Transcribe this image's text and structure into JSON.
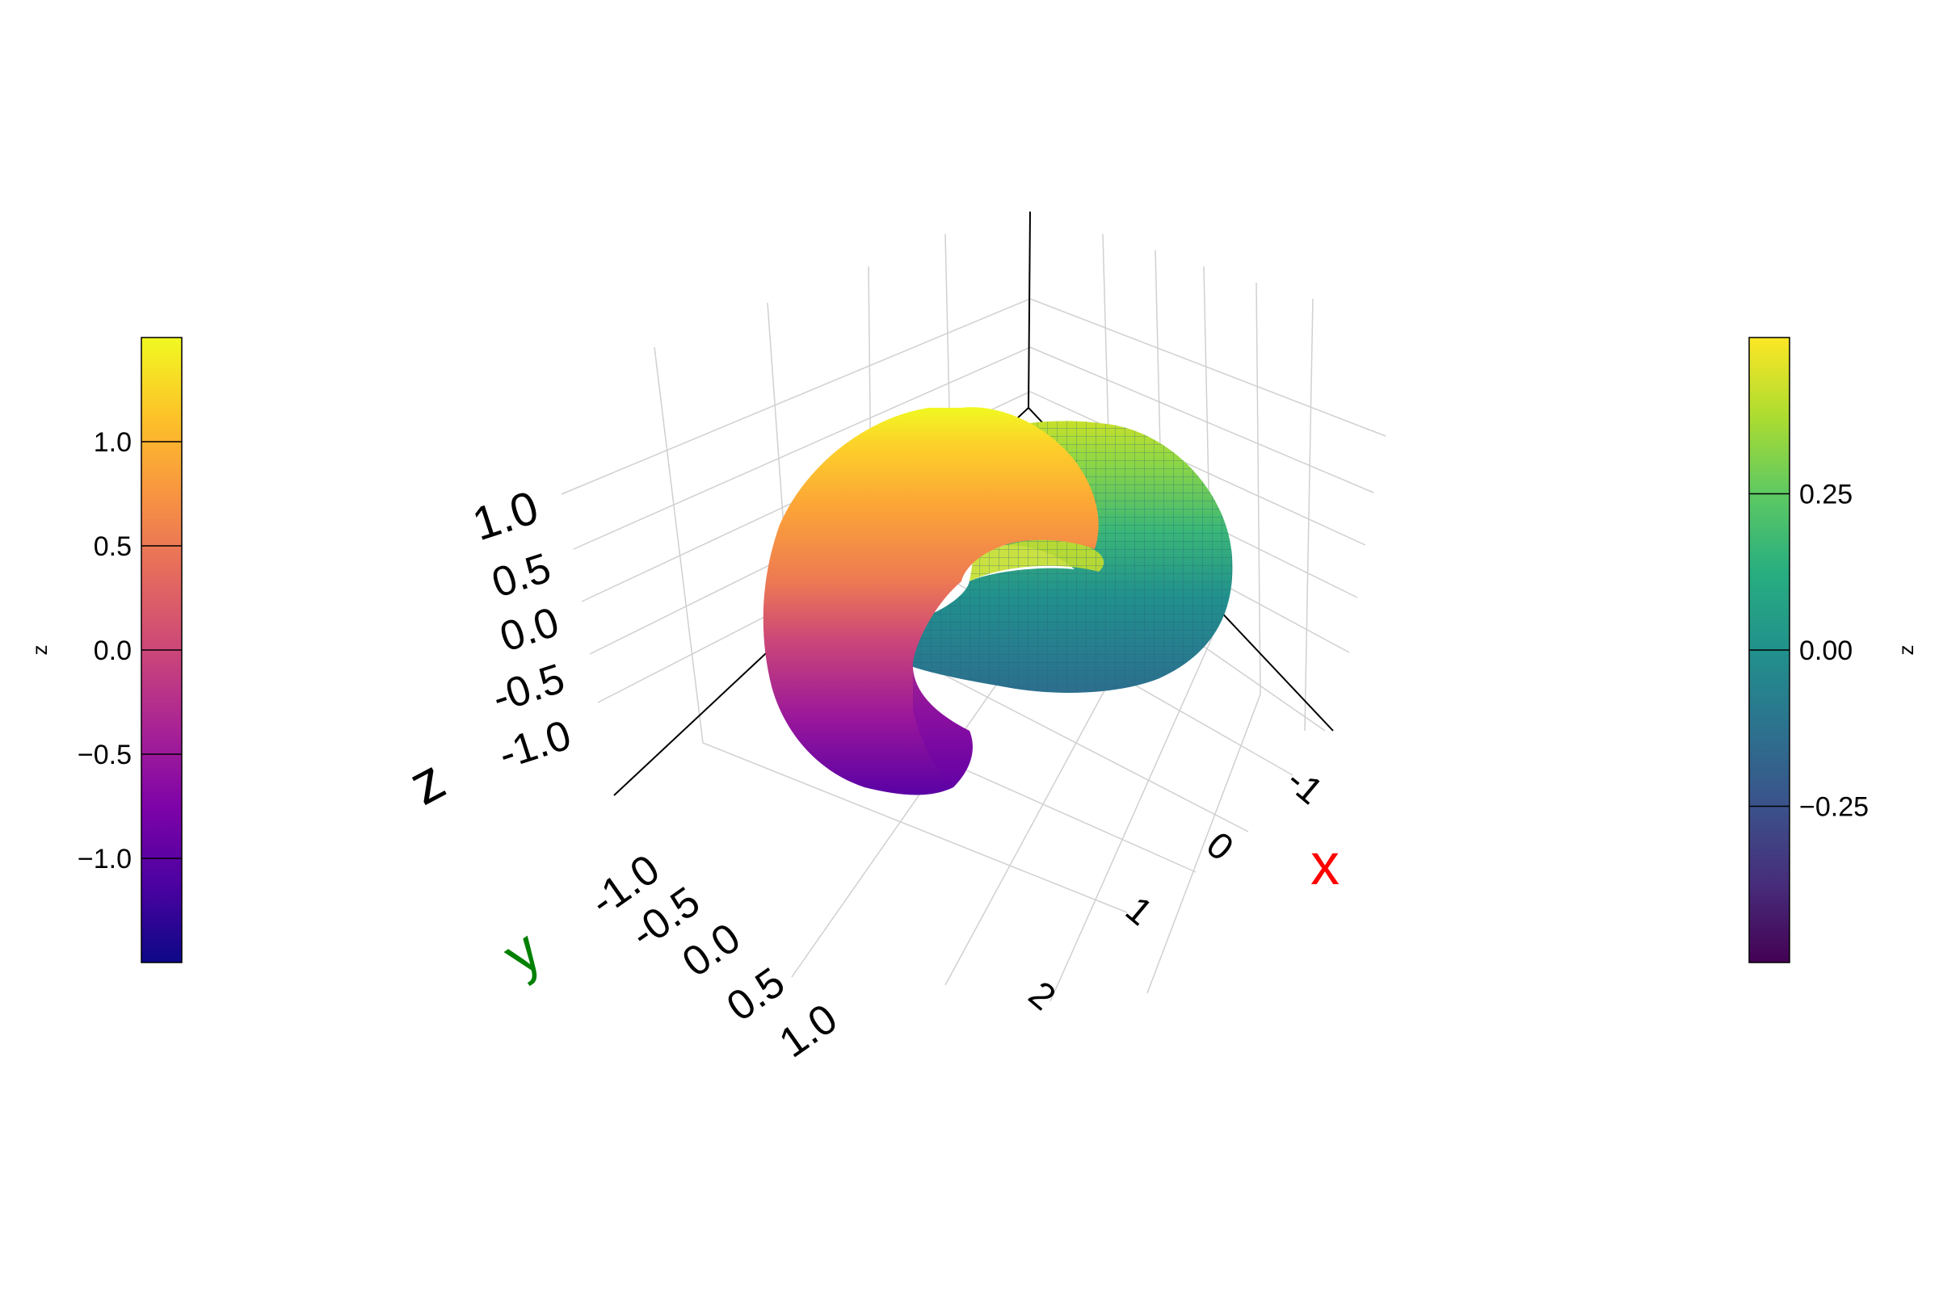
{
  "chart_data": {
    "type": "surface",
    "title": "",
    "axes": {
      "x": {
        "label": "x",
        "label_color": "#ff0000",
        "ticks": [
          "-1",
          "0",
          "1",
          "2"
        ],
        "range": [
          -1.5,
          2.5
        ]
      },
      "y": {
        "label": "y",
        "label_color": "#008000",
        "ticks": [
          "-1.0",
          "-0.5",
          "0.0",
          "0.5",
          "1.0"
        ],
        "range": [
          -1.25,
          1.25
        ]
      },
      "z": {
        "label": "z",
        "label_color": "#000000",
        "ticks": [
          "-1.0",
          "-0.5",
          "0.0",
          "0.5",
          "1.0"
        ],
        "range": [
          -1.5,
          1.5
        ]
      }
    },
    "grid": true,
    "series": [
      {
        "kind": "torus-surface",
        "center": [
          1,
          0,
          0
        ],
        "plane": "xz",
        "major_radius": 1,
        "minor_radius": 0.5,
        "colormap": "plasma",
        "color_by": "z",
        "wireframe": false
      },
      {
        "kind": "torus-surface",
        "center": [
          0,
          0,
          0
        ],
        "plane": "xy",
        "major_radius": 1,
        "minor_radius": 0.5,
        "colormap": "viridis",
        "color_by": "z",
        "wireframe": true
      }
    ],
    "colorbars": [
      {
        "position": "left",
        "label": "z",
        "colormap": "plasma",
        "range": [
          -1.5,
          1.5
        ],
        "ticks": [
          -1.0,
          -0.5,
          0.0,
          0.5,
          1.0
        ],
        "tick_labels": [
          "−1.0",
          "−0.5",
          "0.0",
          "0.5",
          "1.0"
        ]
      },
      {
        "position": "right",
        "label": "z",
        "colormap": "viridis",
        "range": [
          -0.5,
          0.5
        ],
        "ticks": [
          -0.25,
          0.0,
          0.25
        ],
        "tick_labels": [
          "−0.25",
          "0.00",
          "0.25"
        ]
      }
    ]
  }
}
